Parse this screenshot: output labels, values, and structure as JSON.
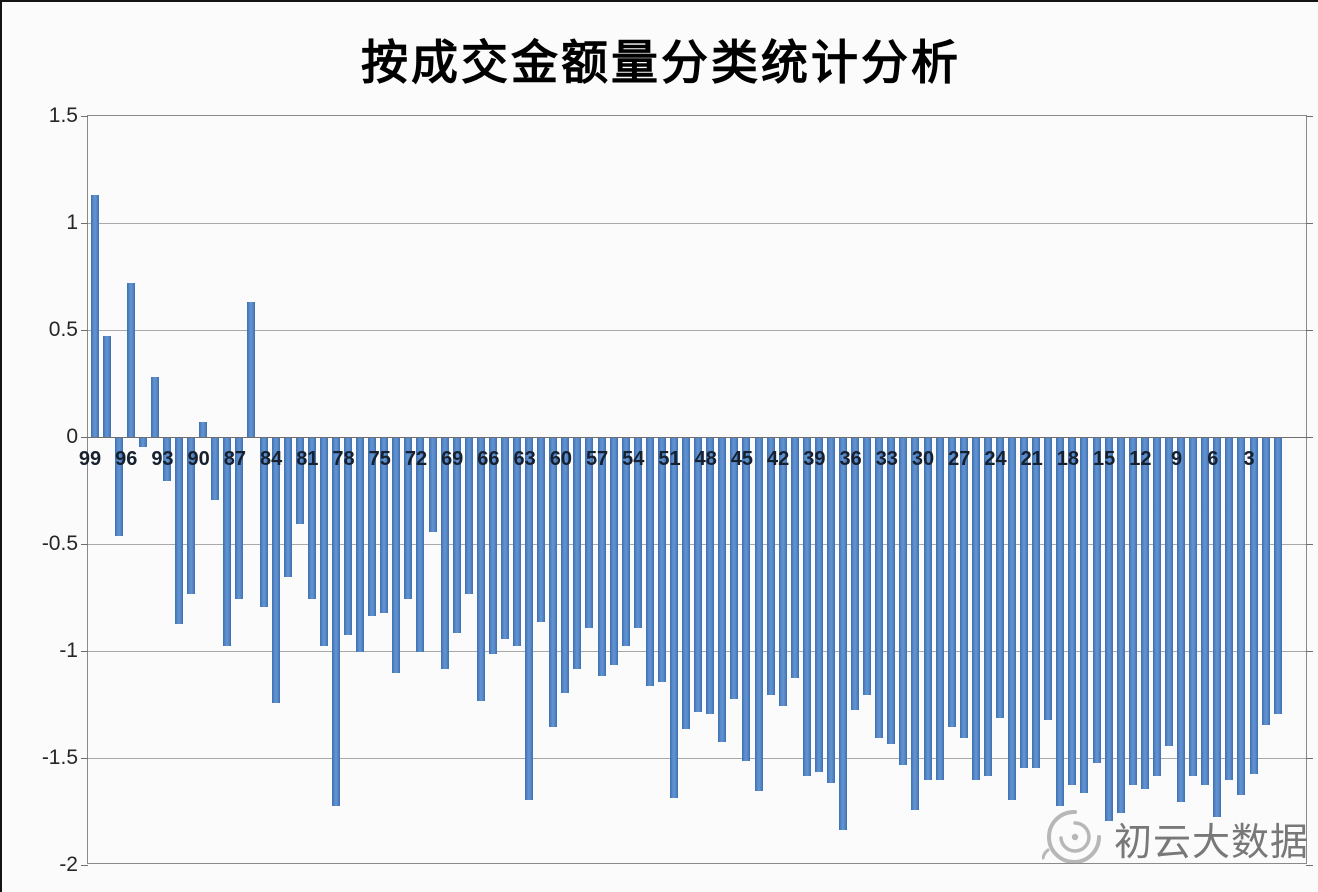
{
  "page": {
    "background": "#fbfbfb",
    "frame_border_color": "#141414"
  },
  "chart_data": {
    "type": "bar",
    "title": "按成交金额量分类统计分析",
    "xlabel": "",
    "ylabel": "",
    "ylim": [
      -2,
      1.5
    ],
    "grid": true,
    "legend": false,
    "bar_color": "#4a7ebc",
    "y_tick_labels": [
      "1.5",
      "1",
      "0.5",
      "0",
      "-0.5",
      "-1",
      "-1.5",
      "-2"
    ],
    "y_tick_values": [
      1.5,
      1,
      0.5,
      0,
      -0.5,
      -1,
      -1.5,
      -2
    ],
    "x_tick_labels": [
      "99",
      "96",
      "93",
      "90",
      "87",
      "84",
      "81",
      "78",
      "75",
      "72",
      "69",
      "66",
      "63",
      "60",
      "57",
      "54",
      "51",
      "48",
      "45",
      "42",
      "39",
      "36",
      "33",
      "30",
      "27",
      "24",
      "21",
      "18",
      "15",
      "12",
      "9",
      "6",
      "3"
    ],
    "categories": [
      99,
      98,
      97,
      96,
      95,
      94,
      93,
      92,
      91,
      90,
      89,
      88,
      87,
      86,
      85,
      84,
      83,
      82,
      81,
      80,
      79,
      78,
      77,
      76,
      75,
      74,
      73,
      72,
      71,
      70,
      69,
      68,
      67,
      66,
      65,
      64,
      63,
      62,
      61,
      60,
      59,
      58,
      57,
      56,
      55,
      54,
      53,
      52,
      51,
      50,
      49,
      48,
      47,
      46,
      45,
      44,
      43,
      42,
      41,
      40,
      39,
      38,
      37,
      36,
      35,
      34,
      33,
      32,
      31,
      30,
      29,
      28,
      27,
      26,
      25,
      24,
      23,
      22,
      21,
      20,
      19,
      18,
      17,
      16,
      15,
      14,
      13,
      12,
      11,
      10,
      9,
      8,
      7,
      6,
      5,
      4,
      3,
      2,
      1
    ],
    "values": [
      1.13,
      0.47,
      -0.46,
      0.72,
      -0.04,
      0.28,
      -0.2,
      -0.87,
      -0.73,
      0.07,
      -0.29,
      -0.97,
      -0.75,
      0.63,
      -0.79,
      -1.24,
      -0.65,
      -0.4,
      -0.75,
      -0.97,
      -1.72,
      -0.92,
      -1.0,
      -0.83,
      -0.82,
      -1.1,
      -0.75,
      -1.0,
      -0.44,
      -1.08,
      -0.91,
      -0.73,
      -1.23,
      -1.01,
      -0.94,
      -0.97,
      -1.69,
      -0.86,
      -1.35,
      -1.19,
      -1.08,
      -0.89,
      -1.11,
      -1.06,
      -0.97,
      -0.89,
      -1.16,
      -1.14,
      -1.68,
      -1.36,
      -1.28,
      -1.29,
      -1.42,
      -1.22,
      -1.51,
      -1.65,
      -1.2,
      -1.25,
      -1.12,
      -1.58,
      -1.56,
      -1.61,
      -1.83,
      -1.27,
      -1.2,
      -1.4,
      -1.43,
      -1.53,
      -1.74,
      -1.6,
      -1.6,
      -1.35,
      -1.4,
      -1.6,
      -1.58,
      -1.31,
      -1.69,
      -1.54,
      -1.54,
      -1.32,
      -1.72,
      -1.62,
      -1.66,
      -1.52,
      -1.79,
      -1.75,
      -1.62,
      -1.64,
      -1.58,
      -1.44,
      -1.7,
      -1.58,
      -1.62,
      -1.77,
      -1.6,
      -1.67,
      -1.57,
      -1.34,
      -1.29
    ]
  },
  "watermark": {
    "text": "初云大数据",
    "logo": "swirl-cloud-icon"
  }
}
